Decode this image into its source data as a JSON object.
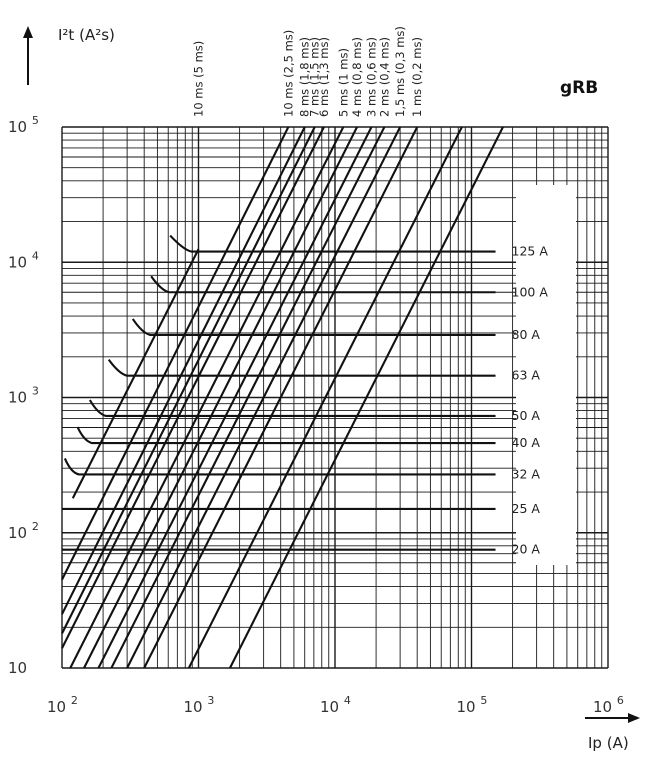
{
  "chart_data": {
    "type": "line",
    "title": "gRB",
    "xlabel": "Ip (A)",
    "ylabel": "I²t (A²s)",
    "x_scale": "log",
    "y_scale": "log",
    "xlim": [
      100,
      1000000
    ],
    "ylim": [
      10,
      100000
    ],
    "x_ticks": [
      {
        "base": "10",
        "exp": "2",
        "value": 100
      },
      {
        "base": "10",
        "exp": "3",
        "value": 1000
      },
      {
        "base": "10",
        "exp": "4",
        "value": 10000
      },
      {
        "base": "10",
        "exp": "5",
        "value": 100000
      },
      {
        "base": "10",
        "exp": "6",
        "value": 1000000
      }
    ],
    "y_ticks": [
      {
        "base": "10",
        "exp": "",
        "value": 10
      },
      {
        "base": "10",
        "exp": "2",
        "value": 100
      },
      {
        "base": "10",
        "exp": "3",
        "value": 1000
      },
      {
        "base": "10",
        "exp": "4",
        "value": 10000
      },
      {
        "base": "10",
        "exp": "5",
        "value": 100000
      }
    ],
    "grid": true,
    "series": [
      {
        "name": "10 ms (5 ms)",
        "x": [
          120,
          1000
        ],
        "y": [
          180,
          12500
        ]
      },
      {
        "name": "10 ms (2,5 ms)",
        "x": [
          100,
          4550
        ],
        "y": [
          45,
          100000
        ]
      },
      {
        "name": "8 ms (1,8 ms)",
        "x": [
          100,
          6000
        ],
        "y": [
          25,
          100000
        ]
      },
      {
        "name": "7 ms (1,5 ms)",
        "x": [
          100,
          7100
        ],
        "y": [
          18,
          100000
        ]
      },
      {
        "name": "6 ms (1,3 ms)",
        "x": [
          100,
          8300
        ],
        "y": [
          14,
          100000
        ]
      },
      {
        "name": "5 ms (1 ms)",
        "x": [
          115,
          11500
        ],
        "y": [
          10,
          100000
        ]
      },
      {
        "name": "4 ms (0,8 ms)",
        "x": [
          145,
          14500
        ],
        "y": [
          10,
          100000
        ]
      },
      {
        "name": "3 ms (0,6 ms)",
        "x": [
          185,
          18500
        ],
        "y": [
          10,
          100000
        ]
      },
      {
        "name": "2 ms (0,4 ms)",
        "x": [
          230,
          23000
        ],
        "y": [
          10,
          100000
        ]
      },
      {
        "name": "1,5 ms (0,3 ms)",
        "x": [
          300,
          30000
        ],
        "y": [
          10,
          100000
        ]
      },
      {
        "name": "1 ms (0,2 ms)",
        "x": [
          400,
          40000
        ],
        "y": [
          10,
          100000
        ]
      },
      {
        "name": "",
        "x": [
          850,
          85000
        ],
        "y": [
          10,
          100000
        ]
      },
      {
        "name": "",
        "x": [
          1700,
          170000
        ],
        "y": [
          10,
          100000
        ]
      }
    ],
    "fuses": [
      {
        "label": "125 A",
        "i2t": 12000,
        "x_start": 800,
        "x_end": 150000,
        "x_hook": 620
      },
      {
        "label": "100 A",
        "i2t": 6000,
        "x_start": 550,
        "x_end": 150000,
        "x_hook": 450
      },
      {
        "label": "80 A",
        "i2t": 2900,
        "x_start": 400,
        "x_end": 150000,
        "x_hook": 330
      },
      {
        "label": "63 A",
        "i2t": 1450,
        "x_start": 270,
        "x_end": 150000,
        "x_hook": 220
      },
      {
        "label": "50 A",
        "i2t": 730,
        "x_start": 190,
        "x_end": 150000,
        "x_hook": 160
      },
      {
        "label": "40 A",
        "i2t": 460,
        "x_start": 150,
        "x_end": 150000,
        "x_hook": 130
      },
      {
        "label": "32 A",
        "i2t": 270,
        "x_start": 120,
        "x_end": 150000,
        "x_hook": 105
      },
      {
        "label": "25 A",
        "i2t": 150,
        "x_start": 100,
        "x_end": 150000,
        "x_hook": null
      },
      {
        "label": "20 A",
        "i2t": 75,
        "x_start": 100,
        "x_end": 150000,
        "x_hook": null
      }
    ]
  }
}
